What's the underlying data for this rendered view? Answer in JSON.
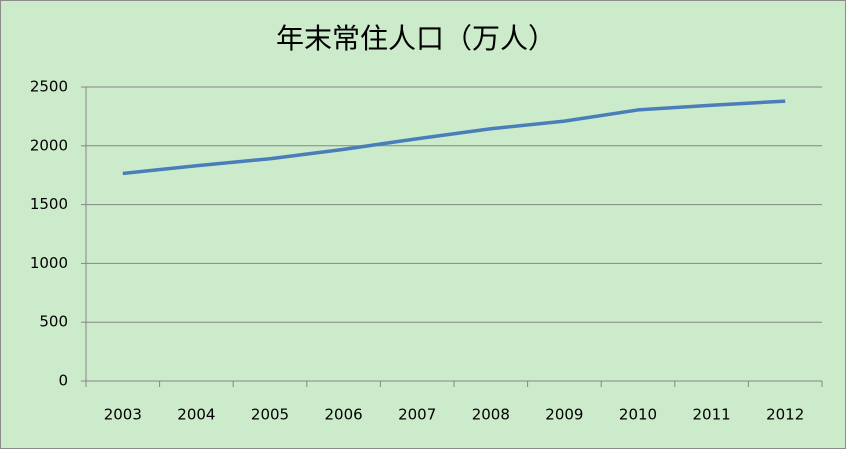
{
  "chart_data": {
    "type": "line",
    "title": "年末常住人口（万人）",
    "categories": [
      "2003",
      "2004",
      "2005",
      "2006",
      "2007",
      "2008",
      "2009",
      "2010",
      "2011",
      "2012"
    ],
    "series": [
      {
        "name": "年末常住人口",
        "color": "#4a7ebb",
        "values": [
          1765,
          1830,
          1890,
          1970,
          2060,
          2145,
          2210,
          2305,
          2345,
          2380
        ]
      }
    ],
    "ylim": [
      0,
      2500
    ],
    "yticks": [
      0,
      500,
      1000,
      1500,
      2000,
      2500
    ],
    "grid": true
  }
}
